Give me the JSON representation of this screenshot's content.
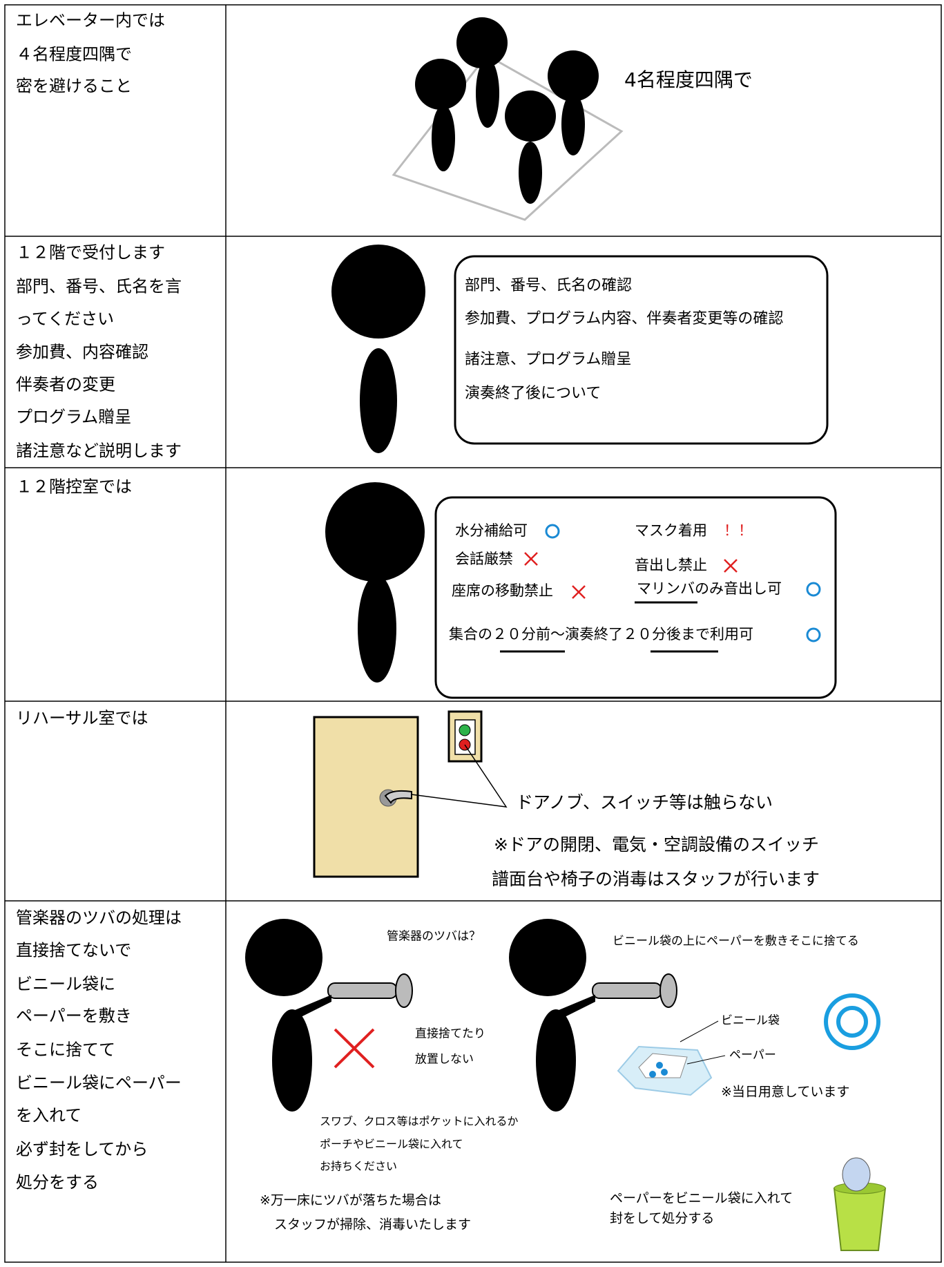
{
  "table": {
    "rows": [
      {
        "left": [
          "エレベーター内では",
          "４名程度四隅で",
          "密を避けること"
        ],
        "right": [
          "4名程度四隅で"
        ]
      },
      {
        "left": [
          "１２階で受付します",
          "部門、番号、氏名を言",
          "ってください",
          "参加費、内容確認",
          "伴奏者の変更",
          "プログラム贈呈",
          "諸注意など説明します"
        ],
        "right": [
          "部門、番号、氏名の確認",
          "参加費、プログラム内容、伴奏者変更等の確認",
          "諸注意、プログラム贈呈",
          "演奏終了後について"
        ]
      },
      {
        "left": [
          "１２階控室では"
        ],
        "right": [
          "水分補給可",
          "マスク着用",
          "！！",
          "会話厳禁",
          "音出し禁止",
          "座席の移動禁止",
          "マリンバのみ音出し可",
          "集合の２０分前～演奏終了２０分後まで利用可"
        ]
      },
      {
        "left": [
          "リハーサル室では"
        ],
        "right": [
          "ドアノブ、スイッチ等は触らない",
          "※ドアの開閉、電気・空調設備のスイッチ",
          "譜面台や椅子の消毒はスタッフが行います"
        ]
      },
      {
        "left": [
          "管楽器のツバの処理は",
          "直接捨てないで",
          "ビニール袋に",
          "ペーパーを敷き",
          "そこに捨てて",
          "ビニール袋にペーパー",
          "を入れて",
          "必ず封をしてから",
          "処分をする"
        ],
        "right": [
          "管楽器のツバは？",
          "ビニール袋の上にペーパーを敷きそこに捨てる",
          "直接捨てたり",
          "放置しない",
          "ビニール袋",
          "ペーパー",
          "※当日用意しています",
          "スワブ、クロス等はポケットに入れるか",
          "ポーチやビニール袋に入れて",
          "お持ちください",
          "※万一床にツバが落ちた場合は",
          "スタッフが掃除、消毒いたします",
          "ペーパーをビニール袋に入れて",
          "封をして処分する"
        ]
      }
    ]
  }
}
